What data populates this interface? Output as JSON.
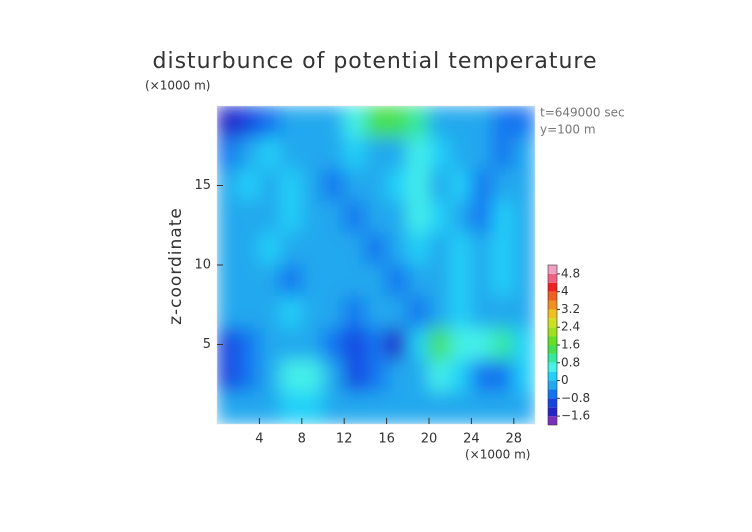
{
  "chart_data": {
    "type": "heatmap",
    "title": "disturbunce of potential temperature",
    "x_unit": "(×1000 m)",
    "y_unit": "(×1000 m)",
    "y_label": "z-coordinate",
    "annotations": [
      "t=649000 sec",
      "y=100 m"
    ],
    "xlim": [
      0,
      30
    ],
    "ylim": [
      0,
      20
    ],
    "xticks": [
      4,
      8,
      12,
      16,
      20,
      24,
      28
    ],
    "yticks": [
      5,
      10,
      15
    ],
    "x": [
      1,
      3,
      5,
      7,
      9,
      11,
      13,
      15,
      17,
      19,
      21,
      23,
      25,
      27,
      29
    ],
    "y": [
      19,
      17,
      15,
      13,
      11,
      9,
      7,
      5,
      3,
      1
    ],
    "values": [
      [
        -1.6,
        -1.2,
        -0.8,
        -0.4,
        -0.4,
        -0.4,
        0.4,
        1.2,
        1.2,
        0.8,
        -0.4,
        -0.4,
        -0.4,
        -0.8,
        -0.8
      ],
      [
        -0.8,
        -0.4,
        0,
        -0.4,
        -0.4,
        -0.4,
        0,
        -0.4,
        -0.4,
        0.4,
        0,
        -0.4,
        -0.4,
        -0.8,
        -0.4
      ],
      [
        -0.4,
        0,
        -0.4,
        0,
        -0.4,
        -0.8,
        -0.4,
        -0.4,
        0,
        0.4,
        -0.4,
        0,
        -0.8,
        -0.4,
        -0.4
      ],
      [
        -0.4,
        -0.4,
        -0.4,
        0,
        -0.4,
        -0.4,
        -0.8,
        -0.4,
        -0.4,
        0.4,
        0,
        -0.4,
        -0.8,
        0,
        -0.4
      ],
      [
        -0.4,
        -0.4,
        0,
        -0.4,
        -0.4,
        -0.4,
        -0.4,
        -0.8,
        -0.4,
        0,
        -0.4,
        0,
        -0.4,
        0,
        -0.4
      ],
      [
        -0.4,
        -0.4,
        -0.4,
        -0.8,
        -0.4,
        -0.4,
        -0.4,
        -0.4,
        -0.8,
        -0.4,
        -0.4,
        0,
        -0.4,
        0,
        -0.4
      ],
      [
        -0.4,
        -0.4,
        -0.4,
        0,
        -0.4,
        -0.4,
        -0.8,
        -0.4,
        -0.4,
        -0.8,
        -0.4,
        0,
        -0.4,
        -0.4,
        -0.4
      ],
      [
        -1.2,
        -0.8,
        -0.4,
        -0.4,
        -0.4,
        -0.8,
        -1.2,
        -0.8,
        -1.6,
        0,
        1.2,
        0.4,
        0.4,
        0.8,
        0
      ],
      [
        -1.2,
        -0.8,
        -0.4,
        0.4,
        0.4,
        -0.4,
        -1.2,
        -0.8,
        -0.4,
        -0.4,
        0.4,
        0,
        -0.8,
        -0.8,
        0
      ],
      [
        -0.4,
        -0.4,
        -0.4,
        0,
        0,
        -0.4,
        -0.4,
        -0.4,
        -0.4,
        -0.4,
        -0.4,
        -0.4,
        -0.4,
        -0.4,
        -0.4
      ]
    ],
    "colorbar": {
      "levels": [
        -2,
        -1.6,
        -1.2,
        -0.8,
        -0.4,
        0,
        0.4,
        0.8,
        1.2,
        1.6,
        2,
        2.4,
        2.8,
        3.2,
        3.6,
        4,
        4.4,
        4.8,
        5.2
      ],
      "colors": [
        "#7b2fbf",
        "#2424c8",
        "#1444e0",
        "#1474f0",
        "#22a8ee",
        "#22d0f8",
        "#44f0e8",
        "#34e8a0",
        "#44e050",
        "#66e022",
        "#a0e020",
        "#d0e020",
        "#f0c020",
        "#f09020",
        "#f06020",
        "#f02020",
        "#f06080",
        "#f0a0c0"
      ],
      "ticks": [
        4.8,
        4,
        3.2,
        2.4,
        1.6,
        0.8,
        0,
        {
          "value": -0.8,
          "label": "−0.8"
        },
        {
          "value": -1.6,
          "label": "−1.6"
        }
      ]
    }
  }
}
